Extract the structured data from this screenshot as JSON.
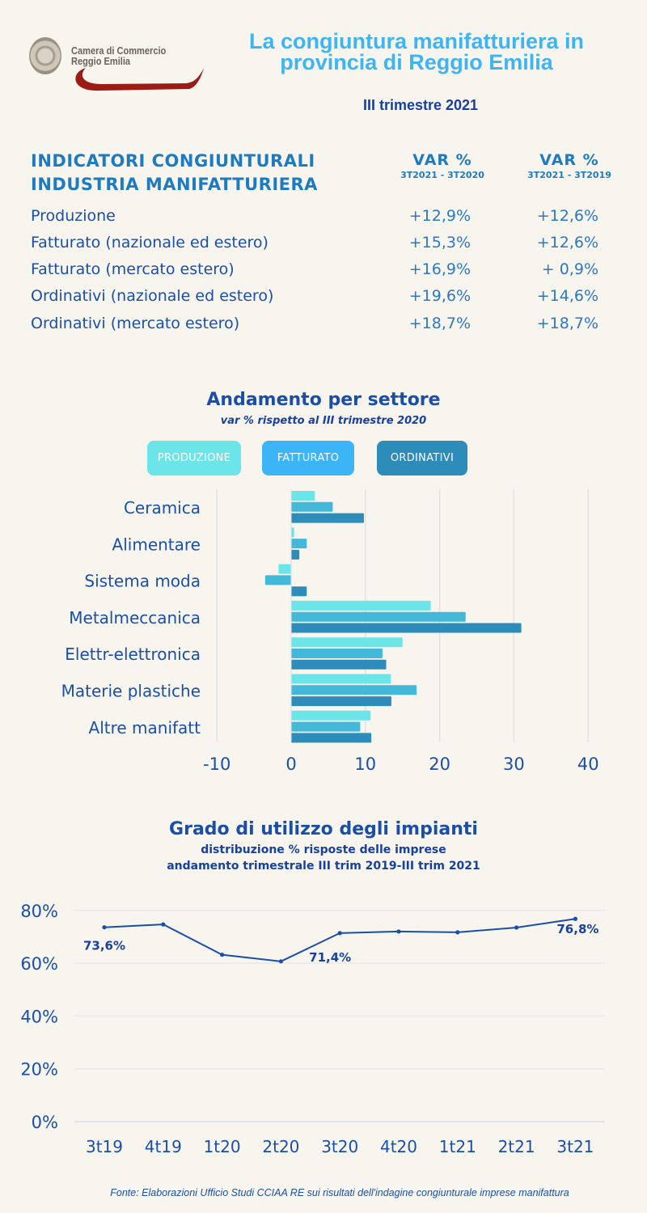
{
  "header": {
    "logo_text_line1": "Camera di Commercio",
    "logo_text_line2": "Reggio Emilia",
    "title": "La congiuntura manifatturiera in provincia di Reggio Emilia",
    "period": "III trimestre 2021"
  },
  "indicators": {
    "title_line1": "INDICATORI CONGIUNTURALI",
    "title_line2": "INDUSTRIA MANIFATTURIERA",
    "columns": [
      {
        "label": "VAR %",
        "sublabel": "3T2021 - 3T2020"
      },
      {
        "label": "VAR %",
        "sublabel": "3T2021 - 3T2019"
      }
    ],
    "rows": [
      {
        "label": "Produzione",
        "v1": "+12,9%",
        "v2": "+12,6%"
      },
      {
        "label": "Fatturato (nazionale ed estero)",
        "v1": "+15,3%",
        "v2": "+12,6%"
      },
      {
        "label": "Fatturato (mercato estero)",
        "v1": "+16,9%",
        "v2": "+ 0,9%"
      },
      {
        "label": "Ordinativi (nazionale ed estero)",
        "v1": "+19,6%",
        "v2": "+14,6%"
      },
      {
        "label": "Ordinativi (mercato estero)",
        "v1": "+18,7%",
        "v2": "+18,7%"
      }
    ]
  },
  "colors": {
    "produzione": "#6ce5e8",
    "fatturato_legend": "#3bb5f8",
    "fatturato_bar": "#43b8d8",
    "ordinativi": "#2d8cba",
    "line": "#1a4fa8",
    "title_accent": "#3db5f5"
  },
  "chart_data": [
    {
      "type": "bar",
      "orientation": "horizontal",
      "title": "Andamento per settore",
      "subtitle": "var % rispetto al III trimestre 2020",
      "categories": [
        "Ceramica",
        "Alimentare",
        "Sistema moda",
        "Metalmeccanica",
        "Elettr-elettronica",
        "Materie plastiche",
        "Altre manifatt"
      ],
      "series": [
        {
          "name": "PRODUZIONE",
          "values": [
            3.2,
            0.4,
            -1.7,
            18.8,
            15.0,
            13.4,
            10.7
          ]
        },
        {
          "name": "FATTURATO",
          "values": [
            5.6,
            2.1,
            -3.5,
            23.5,
            12.3,
            16.9,
            9.3
          ]
        },
        {
          "name": "ORDINATIVI",
          "values": [
            9.8,
            1.1,
            2.1,
            31.0,
            12.8,
            13.5,
            10.8
          ]
        }
      ],
      "xlim": [
        -10,
        40
      ],
      "xticks": [
        "-10",
        "0",
        "10",
        "20",
        "30",
        "40"
      ],
      "grid": true,
      "legend": "top"
    },
    {
      "type": "line",
      "title": "Grado di utilizzo degli impianti",
      "subtitle_line1": "distribuzione % risposte delle imprese",
      "subtitle_line2": "andamento trimestrale III trim 2019-III trim 2021",
      "x": [
        "3t19",
        "4t19",
        "1t20",
        "2t20",
        "3t20",
        "4t20",
        "1t21",
        "2t21",
        "3t21"
      ],
      "values": [
        73.6,
        74.7,
        63.2,
        60.7,
        71.4,
        72.0,
        71.7,
        73.5,
        76.8
      ],
      "data_labels": [
        {
          "index": 0,
          "text": "73,6%"
        },
        {
          "index": 4,
          "text": "71,4%"
        },
        {
          "index": 8,
          "text": "76,8%"
        }
      ],
      "ylim": [
        0,
        80
      ],
      "yticks": [
        "0%",
        "20%",
        "40%",
        "60%",
        "80%"
      ],
      "grid": true
    }
  ],
  "footer": "Fonte: Elaborazioni Ufficio Studi CCIAA RE sui risultati dell'indagine congiunturale imprese manifattura"
}
